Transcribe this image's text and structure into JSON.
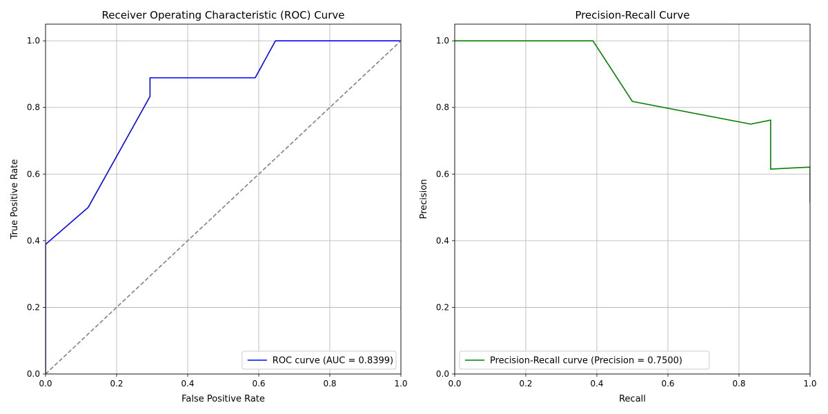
{
  "chart_data": [
    {
      "type": "line",
      "title": "Receiver Operating Characteristic (ROC) Curve",
      "xlabel": "False Positive Rate",
      "ylabel": "True Positive Rate",
      "xlim": [
        0,
        1
      ],
      "ylim": [
        0,
        1.05
      ],
      "xticks": [
        0,
        0.2,
        0.4,
        0.6,
        0.8,
        1
      ],
      "yticks": [
        0,
        0.2,
        0.4,
        0.6,
        0.8,
        1
      ],
      "xtick_labels": [
        "0.0",
        "0.2",
        "0.4",
        "0.6",
        "0.8",
        "1.0"
      ],
      "ytick_labels": [
        "0.0",
        "0.2",
        "0.4",
        "0.6",
        "0.8",
        "1.0"
      ],
      "grid": true,
      "legend_position": "lower-right",
      "series": [
        {
          "name": "ROC curve (AUC = 0.8399)",
          "color": "#0000ff",
          "style": "solid",
          "x": [
            0.0,
            0.0,
            0.12,
            0.294,
            0.294,
            0.59,
            0.647,
            1.0
          ],
          "y": [
            0.0,
            0.389,
            0.5,
            0.833,
            0.889,
            0.889,
            1.0,
            1.0
          ]
        },
        {
          "color": "#808080",
          "style": "dashed",
          "x": [
            0.0,
            1.0
          ],
          "y": [
            0.0,
            1.0
          ]
        }
      ]
    },
    {
      "type": "line",
      "title": "Precision-Recall Curve",
      "xlabel": "Recall",
      "ylabel": "Precision",
      "xlim": [
        0,
        1
      ],
      "ylim": [
        0,
        1.05
      ],
      "xticks": [
        0,
        0.2,
        0.4,
        0.6,
        0.8,
        1
      ],
      "yticks": [
        0,
        0.2,
        0.4,
        0.6,
        0.8,
        1
      ],
      "xtick_labels": [
        "0.0",
        "0.2",
        "0.4",
        "0.6",
        "0.8",
        "1.0"
      ],
      "ytick_labels": [
        "0.0",
        "0.2",
        "0.4",
        "0.6",
        "0.8",
        "1.0"
      ],
      "grid": true,
      "legend_position": "lower-left",
      "series": [
        {
          "name": "Precision-Recall curve (Precision = 0.7500)",
          "color": "#008000",
          "style": "solid",
          "x": [
            0.0,
            0.389,
            0.5,
            0.833,
            0.889,
            0.889,
            1.0,
            1.0
          ],
          "y": [
            1.0,
            1.0,
            0.818,
            0.75,
            0.762,
            0.615,
            0.621,
            0.514
          ]
        }
      ]
    }
  ]
}
